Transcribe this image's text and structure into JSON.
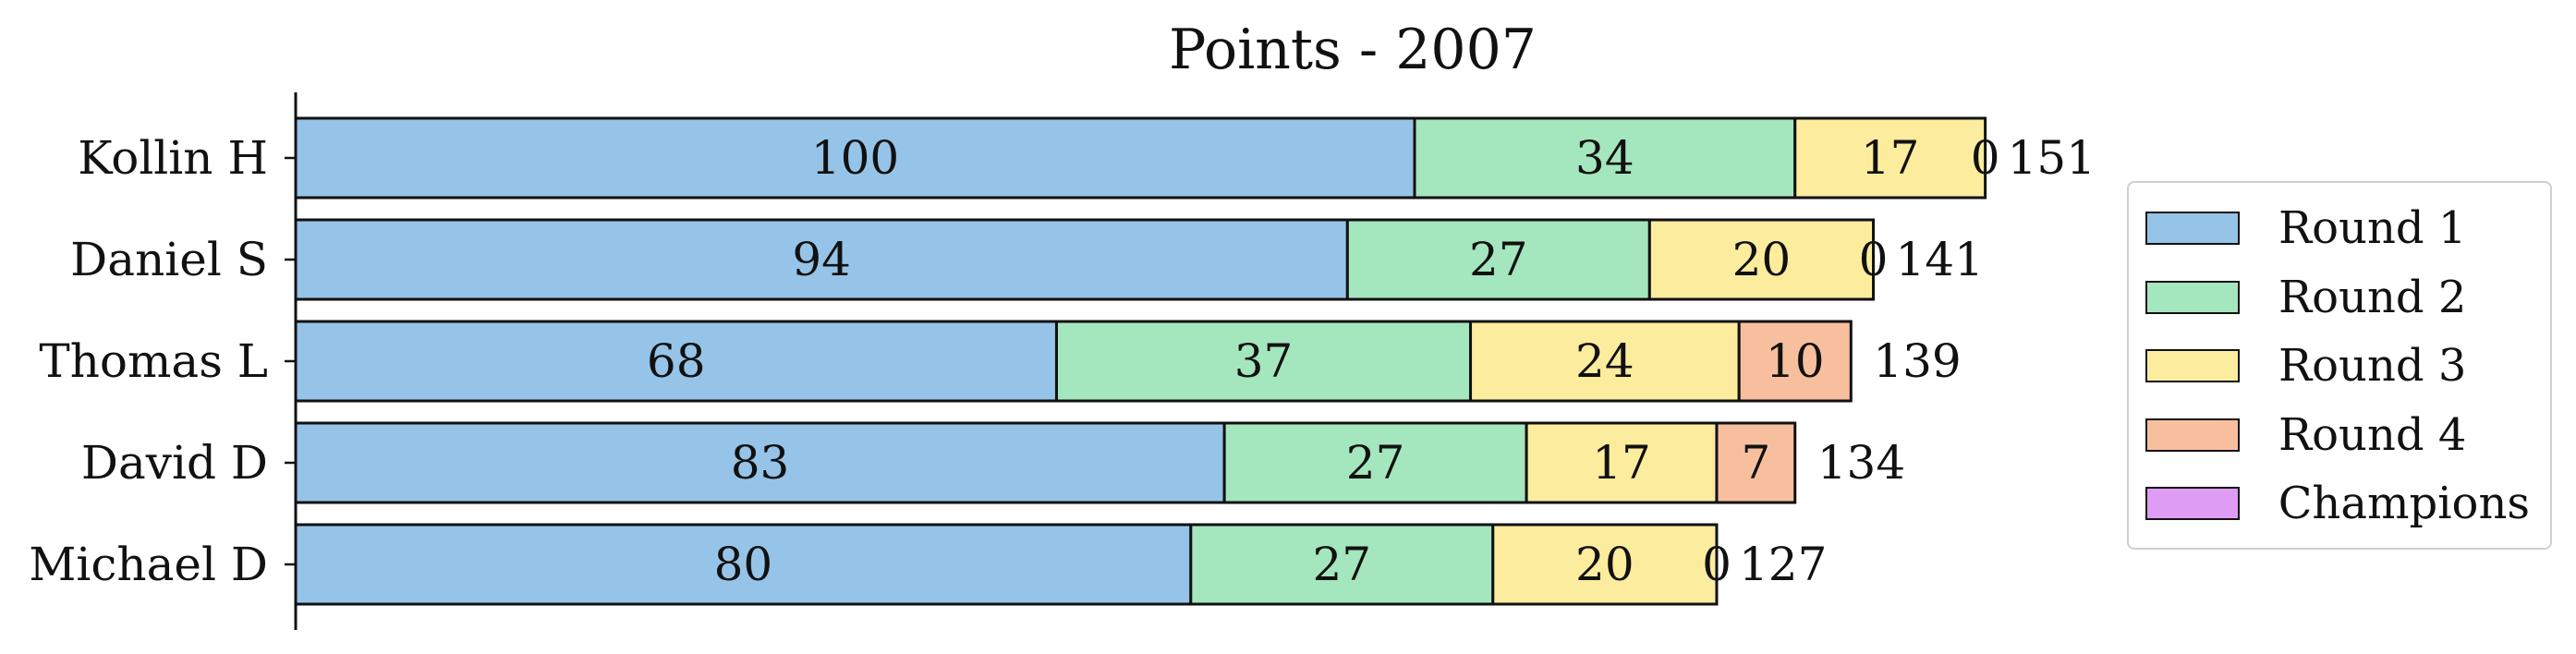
{
  "chart_data": {
    "type": "bar",
    "orientation": "horizontal",
    "stacked": true,
    "title": "Points - 2007",
    "categories": [
      "Kollin H",
      "Daniel S",
      "Thomas L",
      "David D",
      "Michael D"
    ],
    "series": [
      {
        "name": "Round 1",
        "color": "#95c4e8",
        "values": [
          100,
          94,
          68,
          83,
          80
        ]
      },
      {
        "name": "Round 2",
        "color": "#a4e6bd",
        "values": [
          34,
          27,
          37,
          27,
          27
        ]
      },
      {
        "name": "Round 3",
        "color": "#fcec9e",
        "values": [
          17,
          20,
          24,
          17,
          20
        ]
      },
      {
        "name": "Round 4",
        "color": "#f8bf9e",
        "values": [
          0,
          0,
          10,
          7,
          0
        ]
      },
      {
        "name": "Champions",
        "color": "#df9cf5",
        "values": [
          0,
          0,
          0,
          0,
          0
        ]
      }
    ],
    "segment_labels": [
      [
        "100",
        "34",
        "17",
        "",
        "0"
      ],
      [
        "94",
        "27",
        "20",
        "",
        "0"
      ],
      [
        "68",
        "37",
        "24",
        "10",
        ""
      ],
      [
        "83",
        "27",
        "17",
        "7",
        ""
      ],
      [
        "80",
        "27",
        "20",
        "",
        "0"
      ]
    ],
    "totals": [
      151,
      141,
      139,
      134,
      127
    ],
    "xlim": [
      0,
      151
    ],
    "legend_position": "right",
    "grid": false,
    "xaxis_visible": false
  }
}
